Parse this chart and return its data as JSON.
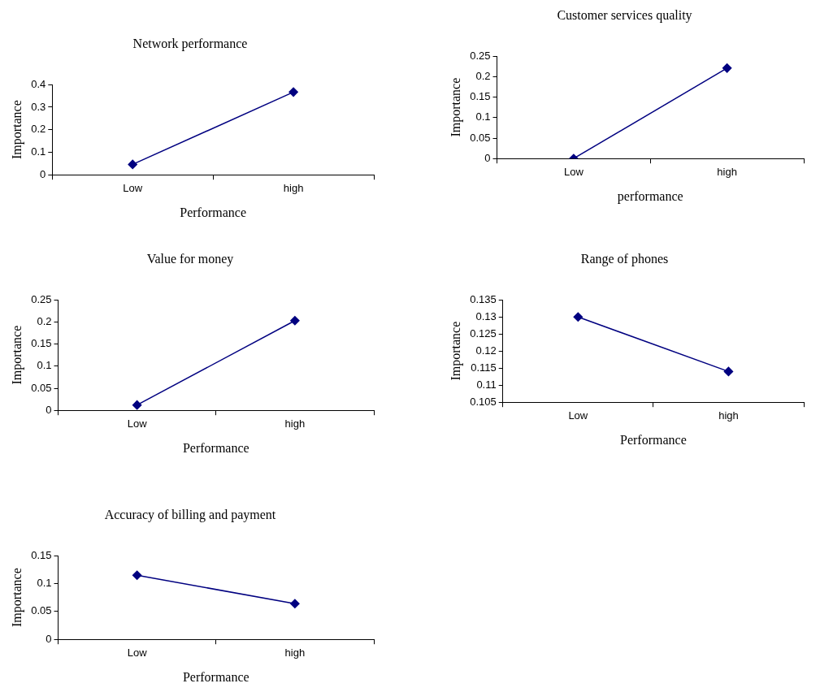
{
  "chart_data": [
    {
      "type": "line",
      "title": "Network performance",
      "xlabel": "Performance",
      "ylabel": "Importance",
      "categories": [
        "Low",
        "high"
      ],
      "series": [
        {
          "color": "#000080",
          "values": [
            0.046,
            0.367
          ]
        }
      ],
      "ylim": [
        0,
        0.4
      ],
      "yticks": [
        0,
        0.1,
        0.2,
        0.3,
        0.4
      ],
      "marker": "diamond",
      "legend": false,
      "grid": false
    },
    {
      "type": "line",
      "title": "Customer services quality",
      "xlabel": "performance",
      "ylabel": "Importance",
      "categories": [
        "Low",
        "high"
      ],
      "series": [
        {
          "color": "#000080",
          "values": [
            0,
            0.221
          ]
        }
      ],
      "ylim": [
        0,
        0.25
      ],
      "yticks": [
        0,
        0.05,
        0.1,
        0.15,
        0.2,
        0.25
      ],
      "marker": "diamond",
      "legend": false,
      "grid": false
    },
    {
      "type": "line",
      "title": "Value for money",
      "xlabel": "Performance",
      "ylabel": "Importance",
      "categories": [
        "Low",
        "high"
      ],
      "series": [
        {
          "color": "#000080",
          "values": [
            0.012,
            0.203
          ]
        }
      ],
      "ylim": [
        0,
        0.25
      ],
      "yticks": [
        0,
        0.05,
        0.1,
        0.15,
        0.2,
        0.25
      ],
      "marker": "diamond",
      "legend": false,
      "grid": false
    },
    {
      "type": "line",
      "title": "Range of phones",
      "xlabel": "Performance",
      "ylabel": "Importance",
      "categories": [
        "Low",
        "high"
      ],
      "series": [
        {
          "color": "#000080",
          "values": [
            0.13,
            0.114
          ]
        }
      ],
      "ylim": [
        0.105,
        0.135
      ],
      "yticks": [
        0.105,
        0.11,
        0.115,
        0.12,
        0.125,
        0.13,
        0.135
      ],
      "marker": "diamond",
      "legend": false,
      "grid": false
    },
    {
      "type": "line",
      "title": "Accuracy of billing and payment",
      "xlabel": "Performance",
      "ylabel": "Importance",
      "categories": [
        "Low",
        "high"
      ],
      "series": [
        {
          "color": "#000080",
          "values": [
            0.115,
            0.064
          ]
        }
      ],
      "ylim": [
        0,
        0.15
      ],
      "yticks": [
        0,
        0.05,
        0.1,
        0.15
      ],
      "marker": "diamond",
      "legend": false,
      "grid": false
    }
  ]
}
